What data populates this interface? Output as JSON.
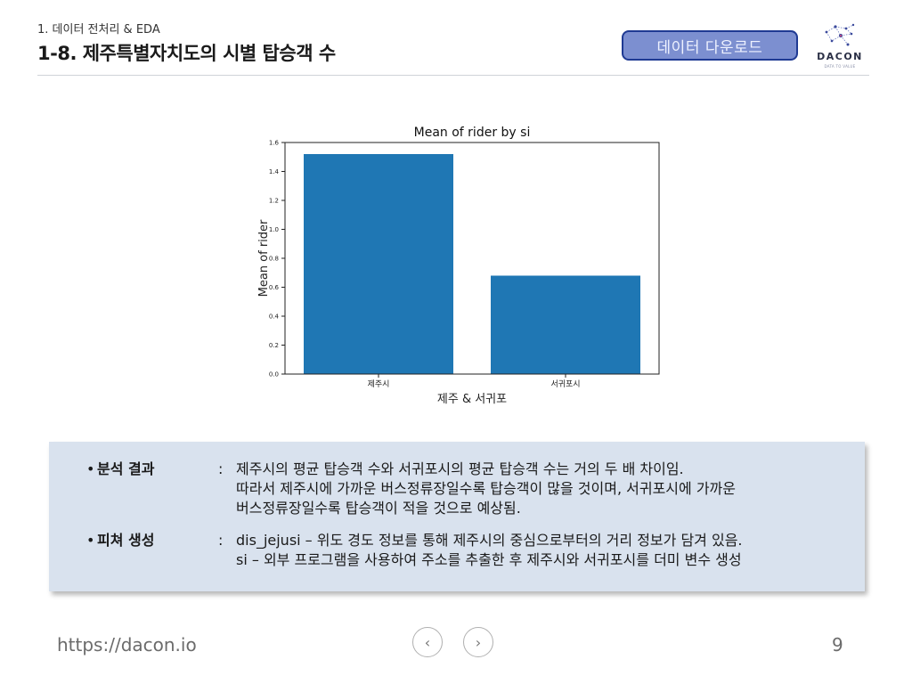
{
  "header": {
    "section": "1. 데이터 전처리 & EDA",
    "title": "1-8. 제주특별자치도의 시별 탑승객 수",
    "download_label": "데이터 다운로드",
    "logo_text": "DACON",
    "logo_tagline": "DATA TO VALUE"
  },
  "chart_data": {
    "type": "bar",
    "title": "Mean of rider by si",
    "xlabel": "제주 & 서귀포",
    "ylabel": "Mean of rider",
    "categories": [
      "제주시",
      "서귀포시"
    ],
    "values": [
      1.52,
      0.68
    ],
    "ylim": [
      0.0,
      1.6
    ],
    "yticks": [
      "0.0",
      "0.2",
      "0.4",
      "0.6",
      "0.8",
      "1.0",
      "1.2",
      "1.4",
      "1.6"
    ],
    "bar_color": "#1f77b4",
    "grid": false
  },
  "summary": {
    "analysis_label": "분석 결과",
    "analysis_lines": [
      "제주시의 평균 탑승객 수와 서귀포시의 평균 탑승객 수는 거의 두 배 차이임.",
      "따라서 제주시에 가까운 버스정류장일수록 탑승객이 많을 것이며, 서귀포시에 가까운",
      "버스정류장일수록 탑승객이 적을 것으로 예상됨."
    ],
    "feature_label": "피쳐 생성",
    "feature_lines": [
      "dis_jejusi – 위도 경도 정보를 통해 제주시의 중심으로부터의 거리 정보가 담겨 있음.",
      "si – 외부 프로그램을 사용하여 주소를 추출한 후 제주시와 서귀포시를 더미 변수 생성"
    ]
  },
  "footer": {
    "url": "https://dacon.io",
    "page": "9",
    "prev_icon": "chevron-left-icon",
    "next_icon": "chevron-right-icon"
  },
  "colors": {
    "accent": "#1f3a93",
    "button_fill": "#7c8fd0",
    "summary_bg": "#d9e2ee"
  }
}
